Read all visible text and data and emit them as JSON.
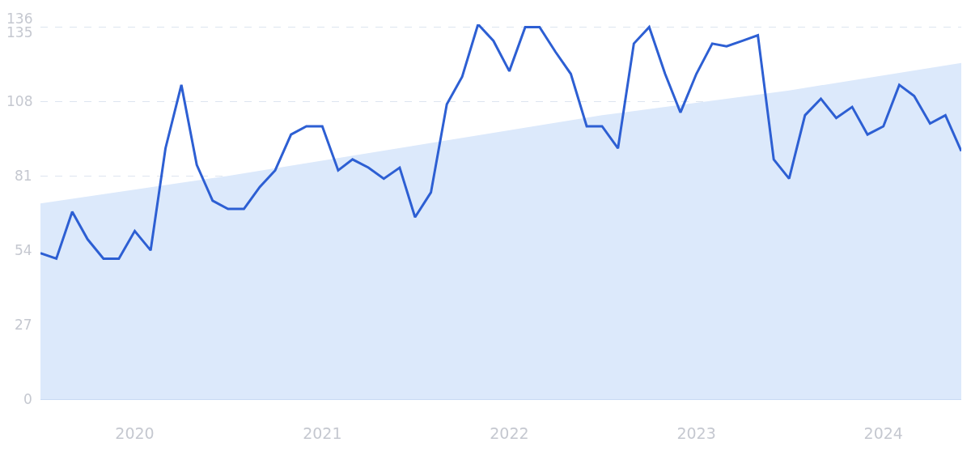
{
  "chart_data": {
    "type": "line",
    "x": [
      "2019-07",
      "2019-08",
      "2019-09",
      "2019-10",
      "2019-11",
      "2019-12",
      "2020-01",
      "2020-02",
      "2020-03",
      "2020-04",
      "2020-05",
      "2020-06",
      "2020-07",
      "2020-08",
      "2020-09",
      "2020-10",
      "2020-11",
      "2020-12",
      "2021-01",
      "2021-02",
      "2021-03",
      "2021-04",
      "2021-05",
      "2021-06",
      "2021-07",
      "2021-08",
      "2021-09",
      "2021-10",
      "2021-11",
      "2021-12",
      "2022-01",
      "2022-02",
      "2022-03",
      "2022-04",
      "2022-05",
      "2022-06",
      "2022-07",
      "2022-08",
      "2022-09",
      "2022-10",
      "2022-11",
      "2022-12",
      "2023-01",
      "2023-02",
      "2023-03",
      "2023-04",
      "2023-05",
      "2023-06",
      "2023-07",
      "2023-08",
      "2023-09",
      "2023-10",
      "2023-11",
      "2023-12",
      "2024-01",
      "2024-02",
      "2024-03",
      "2024-04",
      "2024-05",
      "2024-06"
    ],
    "series": [
      {
        "type": "area",
        "color": "#dce9fb",
        "x": [
          "2019-07",
          "2020-07",
          "2021-07",
          "2022-07",
          "2023-07",
          "2024-06"
        ],
        "values": [
          71,
          81,
          92,
          103,
          112,
          122
        ]
      },
      {
        "color": "#2d5fd3",
        "values": [
          53,
          51,
          68,
          58,
          51,
          51,
          61,
          54,
          91,
          114,
          85,
          72,
          69,
          69,
          77,
          83,
          96,
          99,
          99,
          83,
          87,
          84,
          80,
          84,
          66,
          75,
          107,
          117,
          136,
          130,
          119,
          135,
          135,
          126,
          118,
          99,
          99,
          91,
          129,
          135,
          118,
          104,
          118,
          129,
          128,
          130,
          132,
          87,
          80,
          103,
          109,
          102,
          106,
          96,
          99,
          114,
          110,
          100,
          103,
          90
        ]
      }
    ],
    "xlim": [
      "2019-07",
      "2024-06"
    ],
    "xticks": [
      "2020",
      "2021",
      "2022",
      "2023",
      "2024"
    ],
    "ylim": [
      0,
      136
    ],
    "yticks": [
      0,
      27,
      54,
      81,
      108,
      135,
      136
    ],
    "grid": "y",
    "marker": "none",
    "line_style": "solid"
  }
}
